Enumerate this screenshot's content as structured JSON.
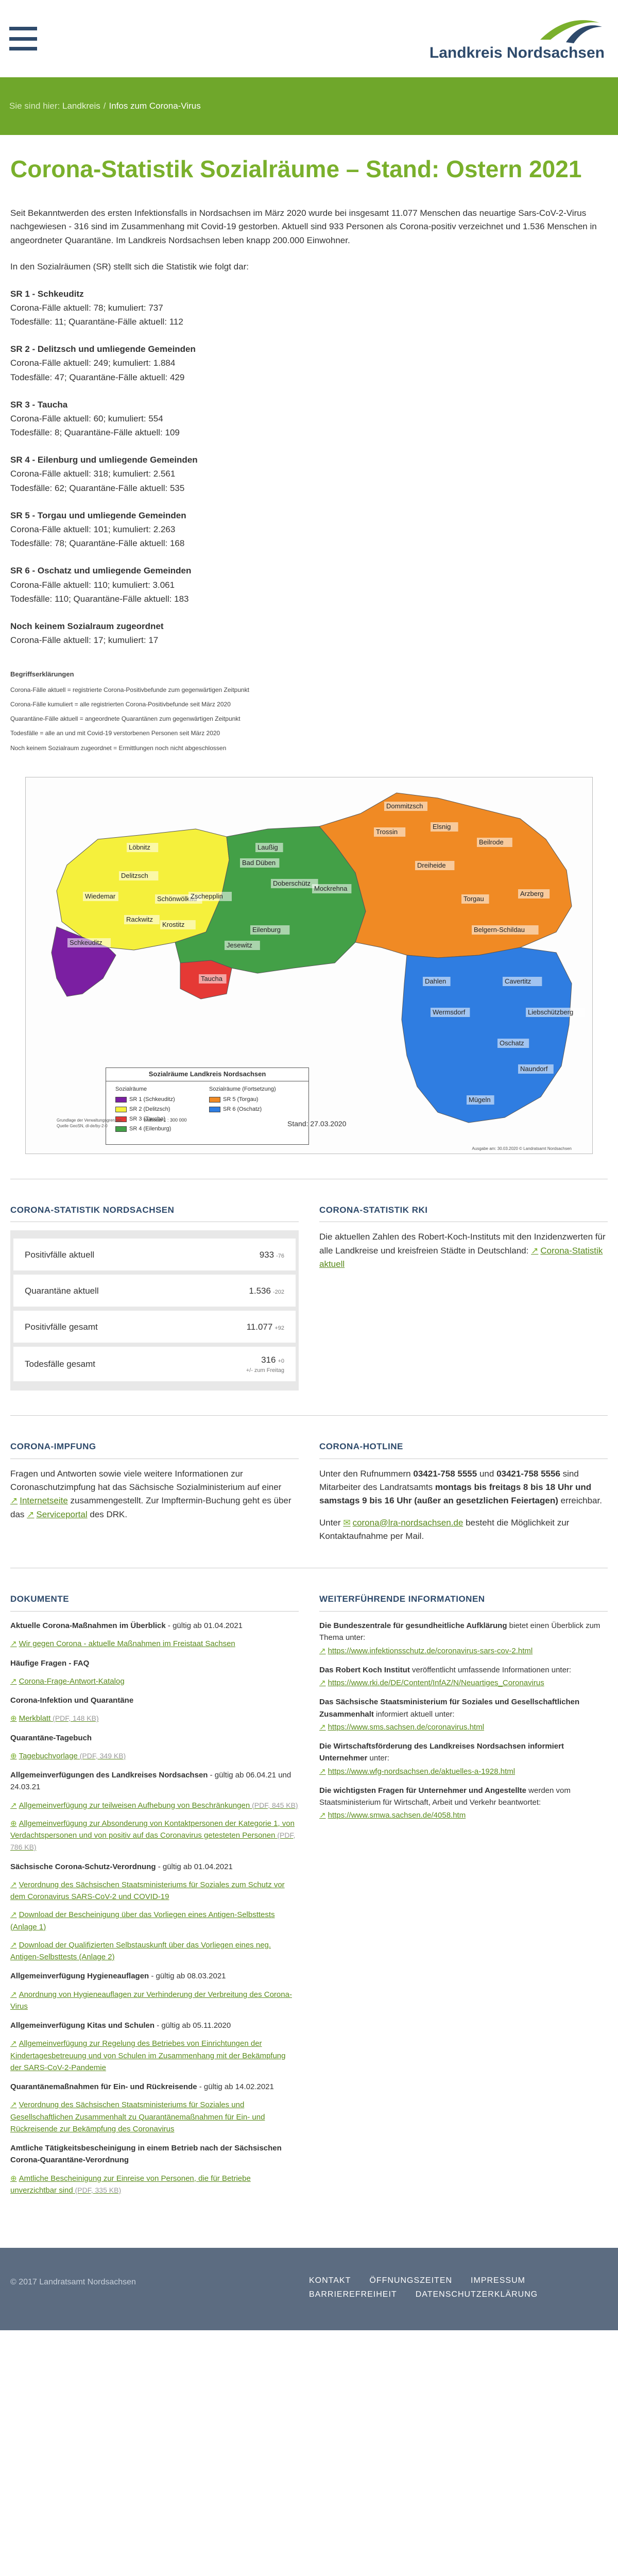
{
  "header": {
    "logo_text": "Landkreis Nordsachsen",
    "menu_icon": "hamburger-menu-icon"
  },
  "breadcrumb": {
    "prefix": "Sie sind hier:",
    "home": "Landkreis",
    "current": "Infos zum Corona-Virus",
    "separator": "/"
  },
  "page": {
    "title": "Corona-Statistik Sozialräume – Stand: Ostern 2021",
    "intro": "Seit Bekanntwerden des ersten Infektionsfalls in Nordsachsen im März 2020 wurde bei insgesamt 11.077 Menschen das neuartige Sars-CoV-2-Virus nachgewiesen - 316 sind im Zusammenhang mit Covid-19 gestorben. Aktuell sind 933 Personen als Corona-positiv verzeichnet und 1.536 Menschen in angeordneter Quarantäne. Im Landkreis Nordsachsen leben knapp 200.000 Einwohner.",
    "lead": "In den Sozialräumen (SR) stellt sich die Statistik wie folgt dar:",
    "regions": [
      {
        "name": "SR 1 - Schkeuditz",
        "l1": "Corona-Fälle aktuell: 78; kumuliert: 737",
        "l2": "Todesfälle: 11; Quarantäne-Fälle aktuell: 112"
      },
      {
        "name": "SR 2 - Delitzsch und umliegende Gemeinden",
        "l1": "Corona-Fälle aktuell: 249; kumuliert: 1.884",
        "l2": "Todesfälle: 47; Quarantäne-Fälle aktuell: 429"
      },
      {
        "name": "SR 3 - Taucha",
        "l1": "Corona-Fälle aktuell: 60; kumuliert: 554",
        "l2": "Todesfälle: 8; Quarantäne-Fälle aktuell: 109"
      },
      {
        "name": "SR 4 - Eilenburg und umliegende Gemeinden",
        "l1": "Corona-Fälle aktuell: 318; kumuliert: 2.561",
        "l2": "Todesfälle: 62; Quarantäne-Fälle aktuell: 535"
      },
      {
        "name": "SR 5 - Torgau und umliegende Gemeinden",
        "l1": "Corona-Fälle aktuell: 101; kumuliert: 2.263",
        "l2": "Todesfälle: 78; Quarantäne-Fälle aktuell: 168"
      },
      {
        "name": "SR 6 - Oschatz und umliegende Gemeinden",
        "l1": "Corona-Fälle aktuell: 110; kumuliert: 3.061",
        "l2": "Todesfälle: 110; Quarantäne-Fälle aktuell: 183"
      },
      {
        "name": "Noch keinem Sozialraum zugeordnet",
        "l1": "Corona-Fälle aktuell: 17; kumuliert: 17",
        "l2": ""
      }
    ],
    "definitions": {
      "title": "Begriffserklärungen",
      "items": [
        "Corona-Fälle aktuell = registrierte Corona-Positivbefunde zum gegenwärtigen Zeitpunkt",
        "Corona-Fälle kumuliert = alle registrierten Corona-Positivbefunde seit März 2020",
        "Quarantäne-Fälle aktuell = angeordnete Quarantänen zum gegenwärtigen Zeitpunkt",
        "Todesfälle = alle an und mit Covid-19 verstorbenen Personen seit März 2020",
        "Noch keinem Sozialraum zugeordnet = Ermittlungen noch nicht abgeschlossen"
      ]
    }
  },
  "map": {
    "legend_title": "Sozialräume Landkreis Nordsachsen",
    "col1_title": "Sozialräume",
    "col2_title": "Sozialräume (Fortsetzung)",
    "legend": [
      {
        "label": "SR 1 (Schkeuditz)",
        "color": "#7b1fa2"
      },
      {
        "label": "SR 2 (Delitzsch)",
        "color": "#f5f03c"
      },
      {
        "label": "SR 3 (Taucha)",
        "color": "#e53935"
      },
      {
        "label": "SR 4 (Eilenburg)",
        "color": "#43a047"
      },
      {
        "label": "SR 5 (Torgau)",
        "color": "#f08a24"
      },
      {
        "label": "SR 6 (Oschatz)",
        "color": "#2f7de1"
      }
    ],
    "stand": "Stand: 27.03.2020",
    "scale": "Maßstab 1 : 300 000",
    "source": "Grundlage der Verwaltungsgrenzen: Quelle GeoSN, dl-de/by-2-0",
    "footer_right": "Ausgabe am: 30.03.2020        © Landratsamt Nordsachsen",
    "places": [
      {
        "name": "Löbnitz",
        "color": "#222"
      },
      {
        "name": "Delitzsch",
        "color": "#222"
      },
      {
        "name": "Wiedemar",
        "color": "#222"
      },
      {
        "name": "Schönwölkau",
        "color": "#222"
      },
      {
        "name": "Zschepplin",
        "color": "#222"
      },
      {
        "name": "Rackwitz",
        "color": "#222"
      },
      {
        "name": "Krostitz",
        "color": "#222"
      },
      {
        "name": "Schkeuditz",
        "color": "#222"
      },
      {
        "name": "Taucha",
        "color": "#222"
      },
      {
        "name": "Jesewitz",
        "color": "#222"
      },
      {
        "name": "Eilenburg",
        "color": "#222"
      },
      {
        "name": "Laußig",
        "color": "#222"
      },
      {
        "name": "Doberschütz",
        "color": "#222"
      },
      {
        "name": "Mockrehna",
        "color": "#222"
      },
      {
        "name": "Bad Düben",
        "color": "#222"
      },
      {
        "name": "Dommitzsch",
        "color": "#222"
      },
      {
        "name": "Trossin",
        "color": "#222"
      },
      {
        "name": "Elsnig",
        "color": "#222"
      },
      {
        "name": "Beilrode",
        "color": "#222"
      },
      {
        "name": "Dreiheide",
        "color": "#222"
      },
      {
        "name": "Torgau",
        "color": "#222"
      },
      {
        "name": "Arzberg",
        "color": "#222"
      },
      {
        "name": "Belgern-Schildau",
        "color": "#222"
      },
      {
        "name": "Dahlen",
        "color": "#222"
      },
      {
        "name": "Cavertitz",
        "color": "#222"
      },
      {
        "name": "Liebschützberg",
        "color": "#222"
      },
      {
        "name": "Wermsdorf",
        "color": "#222"
      },
      {
        "name": "Oschatz",
        "color": "#222"
      },
      {
        "name": "Naundorf",
        "color": "#222"
      },
      {
        "name": "Mügeln",
        "color": "#222"
      }
    ]
  },
  "stats_nordsachsen": {
    "title": "CORONA-STATISTIK NORDSACHSEN",
    "rows": [
      {
        "label": "Positivfälle aktuell",
        "value": "933",
        "delta": "-76",
        "sub": ""
      },
      {
        "label": "Quarantäne aktuell",
        "value": "1.536",
        "delta": "-202",
        "sub": ""
      },
      {
        "label": "Positivfälle gesamt",
        "value": "11.077",
        "delta": "+92",
        "sub": ""
      },
      {
        "label": "Todesfälle gesamt",
        "value": "316",
        "delta": "+0",
        "sub": "+/- zum Freitag"
      }
    ]
  },
  "rki": {
    "title": "CORONA-STATISTIK RKI",
    "text": "Die aktuellen Zahlen des Robert-Koch-Instituts mit den Inzidenzwerten für alle Landkreise und kreisfreien Städte in Deutschland:",
    "link": "Corona-Statistik aktuell"
  },
  "impfung": {
    "title": "CORONA-IMPFUNG",
    "text": "Fragen und Antworten sowie viele weitere Informationen zur Coronaschutzimpfung hat das Sächsische Sozialministerium auf einer",
    "link1": "Internetseite",
    "text2": "zusammengestellt. Zur Impftermin-Buchung geht es über das",
    "link2": "Serviceportal",
    "text3": "des DRK."
  },
  "hotline": {
    "title": "CORONA-HOTLINE",
    "t1": "Unter den Rufnummern",
    "b1": "03421-758 5555",
    "t2": "und",
    "b2": "03421-758 5556",
    "t3": "sind Mitarbeiter des Landratsamts",
    "b3": "montags bis freitags 8 bis 18 Uhr und samstags 9 bis 16 Uhr (außer an gesetzlichen Feiertagen)",
    "t4": "erreichbar.",
    "t5": "Unter",
    "mail": "corona@lra-nordsachsen.de",
    "t6": "besteht die Möglichkeit zur Kontaktaufnahme per Mail."
  },
  "dokumente": {
    "title": "DOKUMENTE",
    "items": [
      {
        "type": "h",
        "text": "Aktuelle Corona-Maßnahmen im Überblick",
        "suffix": " - gültig ab 01.04.2021"
      },
      {
        "type": "l",
        "text": "Wir gegen Corona - aktuelle Maßnahmen im Freistaat Sachsen",
        "size": ""
      },
      {
        "type": "h",
        "text": "Häufige Fragen - FAQ",
        "suffix": ""
      },
      {
        "type": "l",
        "text": "Corona-Frage-Antwort-Katalog",
        "size": ""
      },
      {
        "type": "h",
        "text": "Corona-Infektion und Quarantäne",
        "suffix": ""
      },
      {
        "type": "d",
        "text": "Merkblatt",
        "size": "(PDF, 148 KB)"
      },
      {
        "type": "h",
        "text": "Quarantäne-Tagebuch",
        "suffix": ""
      },
      {
        "type": "d",
        "text": "Tagebuchvorlage",
        "size": "(PDF, 349 KB)"
      },
      {
        "type": "h",
        "text": "Allgemeinverfügungen des Landkreises Nordsachsen",
        "suffix": " - gültig ab 06.04.21 und 24.03.21"
      },
      {
        "type": "l",
        "text": "Allgemeinverfügung zur teilweisen Aufhebung von Beschränkungen",
        "size": "(PDF, 845 KB)"
      },
      {
        "type": "d",
        "text": "Allgemeinverfügung zur Absonderung von Kontaktpersonen der Kategorie 1, von Verdachtspersonen und von positiv auf das Coronavirus getesteten Personen",
        "size": "(PDF, 786 KB)"
      },
      {
        "type": "h",
        "text": "Sächsische Corona-Schutz-Verordnung",
        "suffix": " - gültig ab 01.04.2021"
      },
      {
        "type": "l",
        "text": "Verordnung des Sächsischen Staatsministeriums für Soziales zum Schutz vor dem Coronavirus SARS-CoV-2 und COVID-19",
        "size": ""
      },
      {
        "type": "l",
        "text": "Download der Bescheinigung über das Vorliegen eines Antigen-Selbsttests (Anlage 1)",
        "size": ""
      },
      {
        "type": "l",
        "text": "Download der Qualifizierten Selbstauskunft über das Vorliegen eines neg. Antigen-Selbsttests (Anlage 2)",
        "size": ""
      },
      {
        "type": "h",
        "text": "Allgemeinverfügung Hygieneauflagen",
        "suffix": " - gültig ab 08.03.2021"
      },
      {
        "type": "l",
        "text": "Anordnung von Hygieneauflagen zur Verhinderung der Verbreitung des Corona-Virus",
        "size": ""
      },
      {
        "type": "h",
        "text": "Allgemeinverfügung Kitas und Schulen",
        "suffix": " - gültig ab 05.11.2020"
      },
      {
        "type": "l",
        "text": "Allgemeinverfügung zur Regelung des Betriebes von Einrichtungen der Kindertagesbetreuung und von Schulen im Zusammenhang mit der Bekämpfung der SARS-CoV-2-Pandemie",
        "size": ""
      },
      {
        "type": "h",
        "text": "Quarantänemaßnahmen für Ein- und Rückreisende",
        "suffix": " - gültig ab 14.02.2021"
      },
      {
        "type": "l",
        "text": "Verordnung des Sächsischen Staatsministeriums für Soziales und Gesellschaftlichen Zusammenhalt zu Quarantänemaßnahmen für Ein- und Rückreisende zur Bekämpfung des Coronavirus",
        "size": ""
      },
      {
        "type": "h",
        "text": "Amtliche Tätigkeitsbescheinigung in einem Betrieb nach der Sächsischen Corona-Quarantäne-Verordnung",
        "suffix": ""
      },
      {
        "type": "d",
        "text": "Amtliche Bescheinigung zur Einreise von Personen, die für Betriebe unverzichtbar sind",
        "size": "(PDF, 335 KB)"
      }
    ]
  },
  "weitere": {
    "title": "WEITERFÜHRENDE INFORMATIONEN",
    "blocks": [
      {
        "bold": "Die Bundeszentrale für gesundheitliche Aufklärung",
        "text": " bietet einen Überblick zum Thema unter:",
        "link": "https://www.infektionsschutz.de/coronavirus-sars-cov-2.html"
      },
      {
        "bold": "Das Robert Koch Institut",
        "text": " veröffentlicht umfassende Informationen unter:",
        "link": "https://www.rki.de/DE/Content/InfAZ/N/Neuartiges_Coronavirus"
      },
      {
        "bold": "Das Sächsische Staatsministerium für Soziales und Gesellschaftlichen Zusammenhalt",
        "text": " informiert aktuell unter:",
        "link": "https://www.sms.sachsen.de/coronavirus.html"
      },
      {
        "bold": "Die Wirtschaftsförderung des Landkreises Nordsachsen informiert Unternehmer",
        "text": " unter:",
        "link": "https://www.wfg-nordsachsen.de/aktuelles-a-1928.html"
      },
      {
        "bold": "Die wichtigsten Fragen für Unternehmer und Angestellte",
        "text": " werden vom Staatsministerium für Wirtschaft, Arbeit und Verkehr beantwortet:",
        "link": "https://www.smwa.sachsen.de/4058.htm"
      }
    ]
  },
  "footer": {
    "copyright": "© 2017 Landratsamt Nordsachsen",
    "links": [
      "KONTAKT",
      "ÖFFNUNGSZEITEN",
      "IMPRESSUM",
      "BARRIEREFREIHEIT",
      "DATENSCHUTZERKLÄRUNG"
    ]
  }
}
